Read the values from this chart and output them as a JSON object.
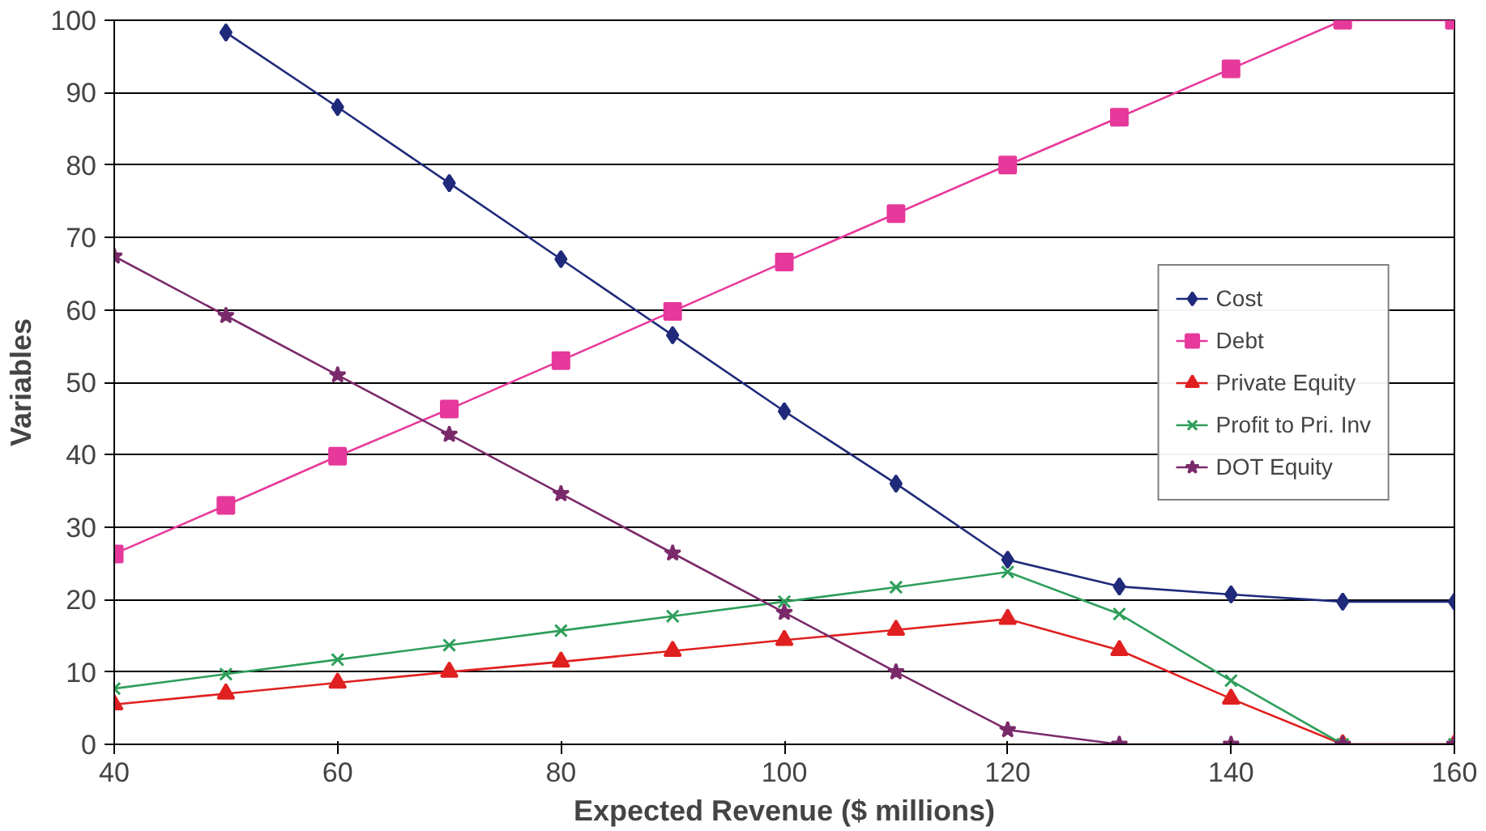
{
  "chart_data": {
    "type": "line",
    "xlabel": "Expected Revenue ($ millions)",
    "ylabel": "Variables",
    "x": [
      40,
      50,
      60,
      70,
      80,
      90,
      100,
      110,
      120,
      130,
      140,
      150,
      160
    ],
    "xlim": [
      40,
      160
    ],
    "xticks": [
      40,
      60,
      80,
      100,
      120,
      140,
      160
    ],
    "ylim": [
      0,
      100
    ],
    "yticks": [
      0,
      10,
      20,
      30,
      40,
      50,
      60,
      70,
      80,
      90,
      100
    ],
    "grid": "y",
    "legend": "right",
    "series": [
      {
        "name": "Cost",
        "color": "#1f2a7a",
        "marker": "diamond",
        "values": [
          null,
          98.3,
          88,
          77.5,
          67,
          56.5,
          46,
          36,
          25.5,
          21.8,
          20.7,
          19.7,
          19.7
        ]
      },
      {
        "name": "Debt",
        "color": "#e6399b",
        "marker": "square",
        "values": [
          26.3,
          33,
          39.8,
          46.3,
          53,
          59.8,
          66.6,
          73.3,
          80,
          86.6,
          93.3,
          100,
          100
        ]
      },
      {
        "name": "Private Equity",
        "color": "#e02020",
        "marker": "triangle",
        "values": [
          5.5,
          7,
          8.5,
          10,
          11.4,
          12.9,
          14.4,
          15.8,
          17.3,
          13,
          6.3,
          0,
          0
        ]
      },
      {
        "name": "Profit to Pri. Inv",
        "color": "#2e9e5a",
        "marker": "cross",
        "values": [
          7.7,
          9.7,
          11.7,
          13.7,
          15.7,
          17.7,
          19.7,
          21.7,
          23.8,
          18,
          8.8,
          0,
          0
        ]
      },
      {
        "name": "DOT Equity",
        "color": "#7a2a6a",
        "marker": "star",
        "values": [
          67.4,
          59.2,
          51,
          42.8,
          34.6,
          26.4,
          18.2,
          10,
          2,
          0,
          0,
          0,
          0
        ]
      }
    ]
  }
}
